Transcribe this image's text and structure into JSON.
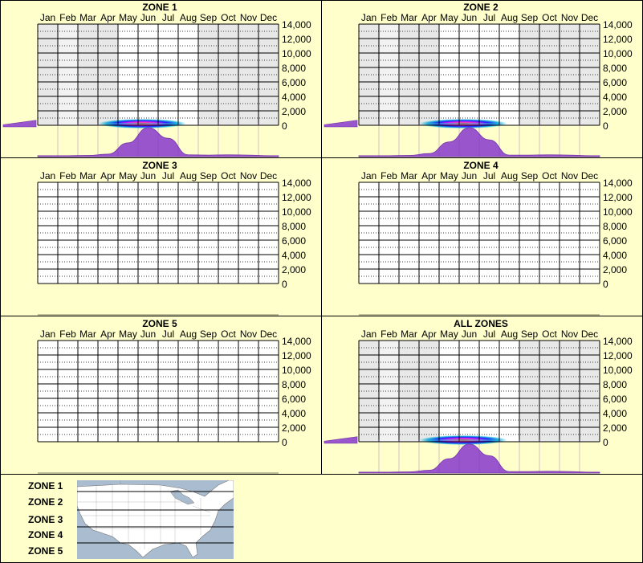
{
  "chart_data": {
    "type": "heatmap",
    "months": [
      "Jan",
      "Feb",
      "Mar",
      "Apr",
      "May",
      "Jun",
      "Jul",
      "Aug",
      "Sep",
      "Oct",
      "Nov",
      "Dec"
    ],
    "y_ticks": [
      "14,000",
      "12,000",
      "10,000",
      "8,000",
      "6,000",
      "4,000",
      "2,000",
      "0"
    ],
    "ylim": [
      0,
      14000
    ],
    "panels": [
      {
        "title": "ZONE 1",
        "has_data": true,
        "active_months": [
          4,
          5,
          6,
          7
        ],
        "seasonal_profile": [
          0.03,
          0.03,
          0.04,
          0.08,
          0.45,
          0.95,
          0.6,
          0.06,
          0.05,
          0.06,
          0.05,
          0.03
        ],
        "elevation_profile": [
          0.1,
          0.45
        ]
      },
      {
        "title": "ZONE 2",
        "has_data": true,
        "active_months": [
          4,
          5,
          6,
          7
        ],
        "seasonal_profile": [
          0.03,
          0.03,
          0.04,
          0.1,
          0.48,
          0.95,
          0.55,
          0.05,
          0.05,
          0.06,
          0.05,
          0.03
        ],
        "elevation_profile": [
          0.1,
          0.45
        ]
      },
      {
        "title": "ZONE 3",
        "has_data": false
      },
      {
        "title": "ZONE 4",
        "has_data": false
      },
      {
        "title": "ZONE 5",
        "has_data": false
      },
      {
        "title": "ALL ZONES",
        "has_data": true,
        "active_months": [
          4,
          5,
          6,
          7
        ],
        "seasonal_profile": [
          0.03,
          0.03,
          0.04,
          0.09,
          0.47,
          0.95,
          0.57,
          0.05,
          0.05,
          0.06,
          0.05,
          0.03
        ],
        "elevation_profile": [
          0.1,
          0.45
        ]
      }
    ]
  },
  "legend": {
    "zones": [
      "ZONE 1",
      "ZONE 2",
      "ZONE 3",
      "ZONE 4",
      "ZONE 5"
    ]
  },
  "colors": {
    "background": "#ffffcc",
    "plot": "#ffffff",
    "shade": "#e8e8e8",
    "profile": "#9955cc",
    "grid": "#000000",
    "map_water": "#a9bcd0",
    "map_land": "#ffffff"
  }
}
